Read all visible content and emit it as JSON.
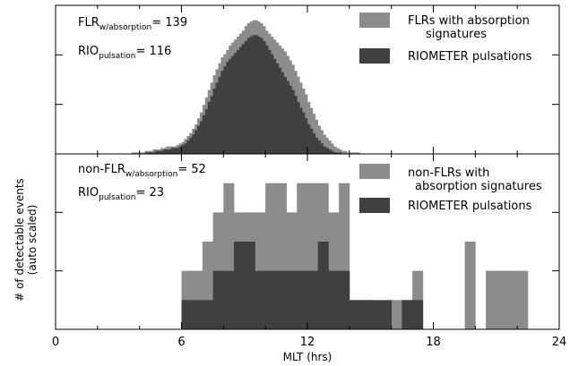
{
  "figure": {
    "y_label_line1": "# of detectable events",
    "y_label_line2": "(auto scaled)",
    "x_label": "MLT (hrs)"
  },
  "colors": {
    "absorption": "#8c8c8c",
    "pulsation": "#404040",
    "axis": "#000000"
  },
  "chart_data": [
    {
      "type": "bar",
      "panel": "top",
      "xlabel": "MLT (hrs)",
      "xlim": [
        0,
        24
      ],
      "x_ticks": [
        0,
        6,
        12,
        18,
        24
      ],
      "ylim": [
        0,
        100
      ],
      "bin_width_hrs": 0.125,
      "bin_start_hrs": 3.5,
      "annotations": [
        {
          "name": "FLR",
          "sub": "w/absorption",
          "value": "139"
        },
        {
          "name": "RIO",
          "sub": "pulsation",
          "value": "116"
        }
      ],
      "legend": [
        {
          "label_lines": [
            "FLRs with absorption",
            "signatures"
          ]
        },
        {
          "label_lines": [
            "RIOMETER pulsations"
          ]
        }
      ],
      "series": [
        {
          "name": "FLRs with absorption signatures",
          "values": [
            0,
            1,
            1,
            1,
            1,
            1,
            2,
            2,
            2,
            3,
            3,
            3,
            4,
            4,
            5,
            5,
            5,
            5,
            6,
            7,
            8,
            10,
            12,
            14,
            17,
            20,
            24,
            28,
            33,
            38,
            43,
            48,
            53,
            57,
            61,
            65,
            67,
            70,
            73,
            75,
            77,
            79,
            81,
            83,
            86,
            88,
            89,
            90,
            90,
            89,
            88,
            86,
            83,
            81,
            79,
            77,
            75,
            73,
            71,
            69,
            66,
            63,
            60,
            56,
            52,
            48,
            44,
            40,
            35,
            31,
            27,
            23,
            19,
            16,
            13,
            11,
            9,
            7,
            5,
            4,
            3,
            2,
            2,
            1,
            1,
            1,
            1,
            1
          ]
        },
        {
          "name": "RIOMETER pulsations",
          "values": [
            0,
            0,
            0,
            0,
            0,
            0,
            1,
            1,
            1,
            1,
            2,
            2,
            2,
            3,
            3,
            3,
            4,
            4,
            4,
            5,
            6,
            7,
            9,
            11,
            13,
            16,
            19,
            22,
            26,
            30,
            35,
            39,
            44,
            48,
            52,
            56,
            59,
            62,
            64,
            66,
            68,
            70,
            72,
            74,
            76,
            78,
            79,
            80,
            80,
            79,
            78,
            76,
            73,
            70,
            67,
            64,
            61,
            58,
            55,
            52,
            49,
            46,
            43,
            39,
            35,
            31,
            28,
            24,
            20,
            17,
            14,
            11,
            9,
            7,
            5,
            4,
            3,
            2,
            1,
            1,
            1,
            0,
            0,
            0,
            0,
            0,
            0,
            0
          ]
        }
      ]
    },
    {
      "type": "bar",
      "panel": "bottom",
      "xlabel": "MLT (hrs)",
      "xlim": [
        0,
        24
      ],
      "x_ticks": [
        0,
        6,
        12,
        18,
        24
      ],
      "ylim": [
        0,
        6
      ],
      "bin_width_hrs": 0.5,
      "bin_start_hrs": 6,
      "annotations": [
        {
          "name": "non-FLR",
          "sub": "w/absorption",
          "value": "52"
        },
        {
          "name": "RIO",
          "sub": "pulsation",
          "value": "23"
        }
      ],
      "legend": [
        {
          "label_lines": [
            "non-FLRs with",
            "absorption signatures"
          ]
        },
        {
          "label_lines": [
            "RIOMETER pulsations"
          ]
        }
      ],
      "series": [
        {
          "name": "non-FLRs with absorption signatures",
          "values": [
            2,
            2,
            3,
            4,
            5,
            4,
            4,
            4,
            5,
            5,
            4,
            5,
            5,
            5,
            4,
            5,
            1,
            1,
            0,
            0,
            1,
            1,
            2,
            0,
            0,
            0,
            0,
            3,
            0,
            2,
            2,
            2,
            2,
            0
          ]
        },
        {
          "name": "RIOMETER pulsations",
          "values": [
            1,
            1,
            1,
            2,
            2,
            3,
            3,
            2,
            2,
            2,
            2,
            2,
            2,
            3,
            2,
            2,
            1,
            1,
            1,
            1,
            0,
            1,
            1,
            0,
            0,
            0,
            0,
            0,
            0,
            0,
            0,
            0,
            0,
            0
          ]
        }
      ]
    }
  ]
}
